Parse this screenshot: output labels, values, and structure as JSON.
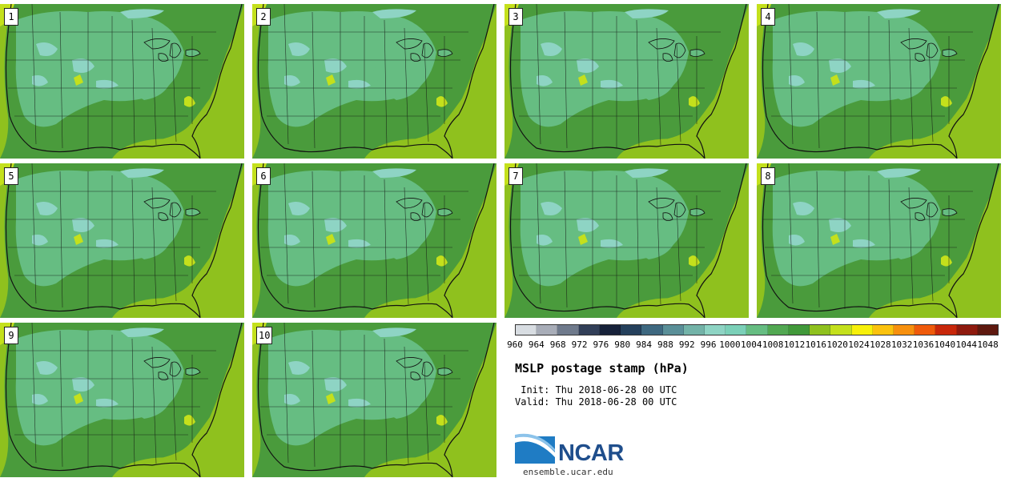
{
  "stamps": [
    {
      "label": "1"
    },
    {
      "label": "2"
    },
    {
      "label": "3"
    },
    {
      "label": "4"
    },
    {
      "label": "5"
    },
    {
      "label": "6"
    },
    {
      "label": "7"
    },
    {
      "label": "8"
    },
    {
      "label": "9"
    },
    {
      "label": "10"
    }
  ],
  "colorbar": {
    "ticks": [
      "960",
      "964",
      "968",
      "972",
      "976",
      "980",
      "984",
      "988",
      "992",
      "996",
      "1000",
      "1004",
      "1008",
      "1012",
      "1016",
      "1020",
      "1024",
      "1028",
      "1032",
      "1036",
      "1040",
      "1044",
      "1048"
    ],
    "colors": [
      "#d8dde2",
      "#a8adb8",
      "#6f7a8c",
      "#323f58",
      "#17223a",
      "#25405c",
      "#3e6880",
      "#5a8f98",
      "#73b3a8",
      "#8ed4c4",
      "#7bd0b8",
      "#66bd82",
      "#52a852",
      "#41993a",
      "#8fc11e",
      "#c4e01c",
      "#f7f00a",
      "#fbc20e",
      "#f7900e",
      "#ef5a0b",
      "#c8270a",
      "#8e1a0e",
      "#5e190f"
    ]
  },
  "title": "MSLP postage stamp (hPa)",
  "init_text": " Init: Thu 2018-06-28 00 UTC",
  "valid_text": "Valid: Thu 2018-06-28 00 UTC",
  "logo_text": "NCAR",
  "site": "ensemble.ucar.edu",
  "map_colors": {
    "land_mid": "#4a9b3c",
    "land_light": "#66bd82",
    "high_terrain": "#8ed4c4",
    "ocean": "#8fc11e",
    "coast_yellow": "#c4e01c",
    "outline": "#111111"
  }
}
